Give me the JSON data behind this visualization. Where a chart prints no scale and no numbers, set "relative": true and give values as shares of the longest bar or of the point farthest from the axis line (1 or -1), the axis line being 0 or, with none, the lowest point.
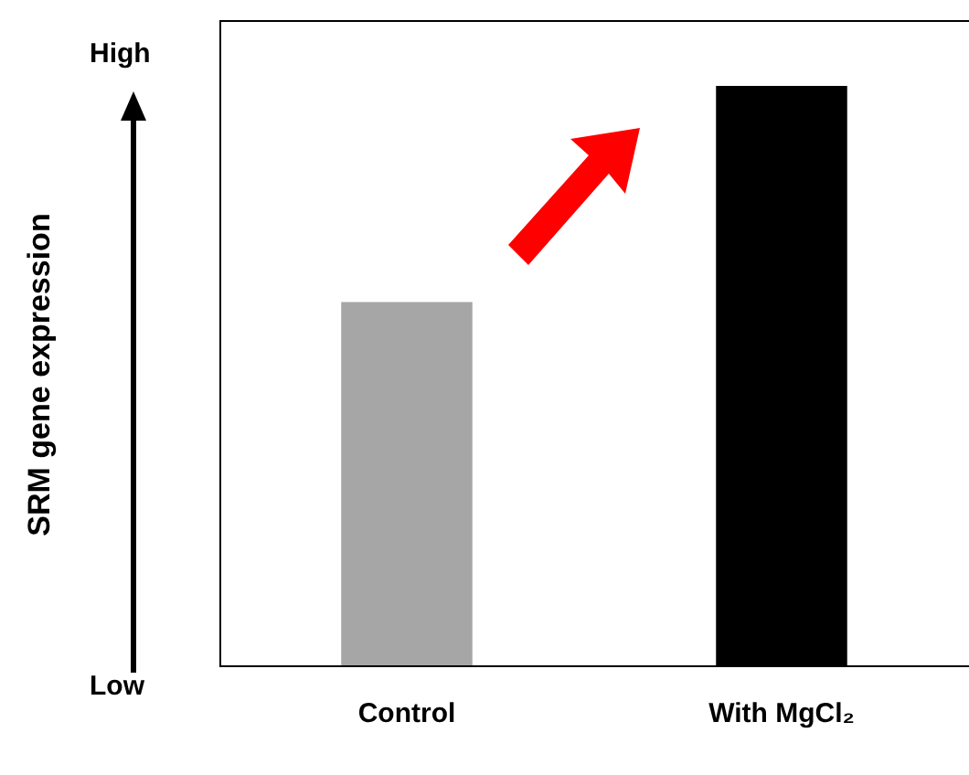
{
  "chart_data": {
    "type": "bar",
    "annotations": [
      "SRM gene expression",
      "High",
      "Low"
    ],
    "categories": [
      "Control",
      "With MgCl₂"
    ],
    "values": [
      0.627,
      1
    ],
    "colors": [
      "#a6a6a6",
      "#000000"
    ],
    "relative": true,
    "grid": false,
    "legend": false
  }
}
